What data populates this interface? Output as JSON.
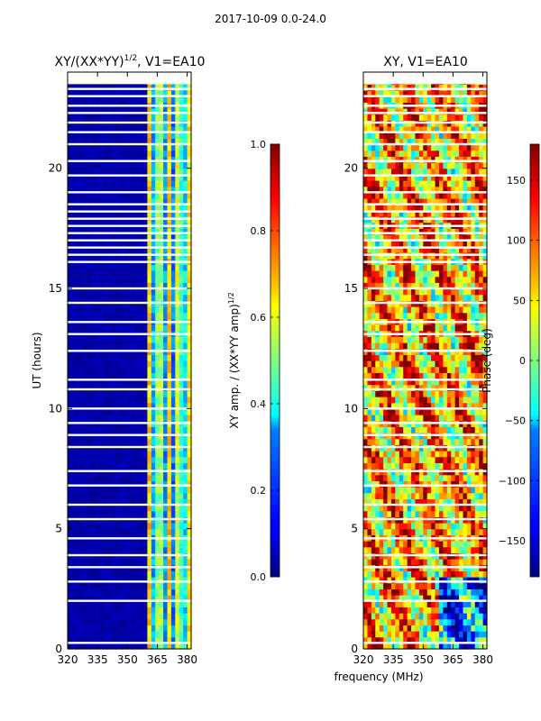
{
  "figure": {
    "suptitle": "2017-10-09 0.0-24.0",
    "xlabel": "frequency (MHz)"
  },
  "chart_data": [
    {
      "type": "heatmap",
      "id": "left",
      "title": "XY/(XX*YY)",
      "title_sup": "1/2",
      "title_suffix": ", V1=EA10",
      "xlabel": "",
      "ylabel": "UT (hours)",
      "xlim": [
        320,
        382
      ],
      "ylim": [
        0,
        24
      ],
      "xticks": [
        320,
        335,
        350,
        365,
        380
      ],
      "yticks": [
        0,
        5,
        10,
        15,
        20
      ],
      "colorbar": {
        "label": "XY amp. / (XX*YY amp)",
        "label_sup": "1/2",
        "range": [
          0.0,
          1.0
        ],
        "ticks": [
          "0.0",
          "0.2",
          "0.4",
          "0.6",
          "0.8",
          "1.0"
        ],
        "colormap": "jet"
      },
      "description_values": {
        "background_level": 0.0,
        "active_band_mhz": [
          360,
          382
        ],
        "active_level_range": [
          0.2,
          0.7
        ]
      }
    },
    {
      "type": "heatmap",
      "id": "right",
      "title": "XY, V1=EA10",
      "xlabel": "frequency (MHz)",
      "ylabel": "",
      "xlim": [
        320,
        382
      ],
      "ylim": [
        0,
        24
      ],
      "xticks": [
        320,
        335,
        350,
        365,
        380
      ],
      "yticks": [
        0,
        5,
        10,
        15,
        20
      ],
      "colorbar": {
        "label": "Phase (deg)",
        "range": [
          -180,
          180
        ],
        "ticks": [
          "−150",
          "−100",
          "−50",
          "0",
          "50",
          "100",
          "150"
        ],
        "tick_values": [
          -150,
          -100,
          -50,
          0,
          50,
          100,
          150
        ],
        "colormap": "jet"
      }
    }
  ],
  "colors": {
    "jet_low": "#00007f",
    "jet_high": "#7f0000",
    "gap": "#ffffff"
  }
}
